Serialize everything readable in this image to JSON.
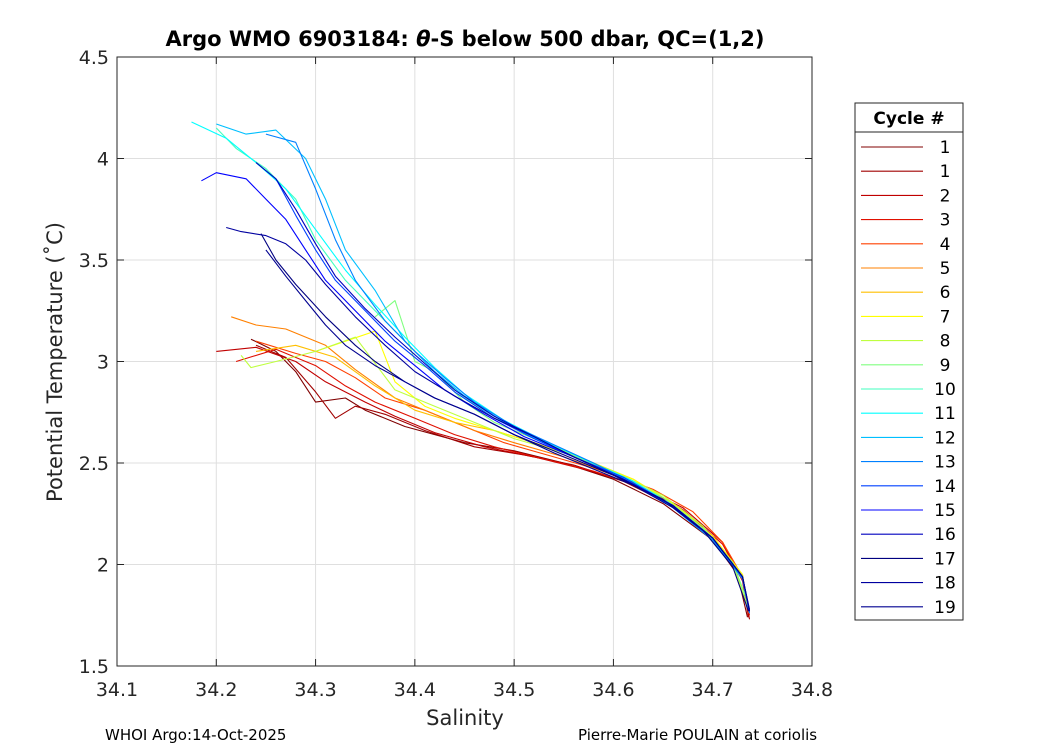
{
  "chart_data": {
    "type": "line",
    "title_prefix": "Argo WMO 6903184: ",
    "title_theta": "θ",
    "title_suffix": "-S below 500 dbar,  QC=(1,2)",
    "xlabel": "Salinity",
    "ylabel": "Potential Temperature (˚C)",
    "xlim": [
      34.1,
      34.8
    ],
    "ylim": [
      1.5,
      4.5
    ],
    "xticks": [
      "34.1",
      "34.2",
      "34.3",
      "34.4",
      "34.5",
      "34.6",
      "34.7",
      "34.8"
    ],
    "yticks": [
      "1.5",
      "2",
      "2.5",
      "3",
      "3.5",
      "4",
      "4.5"
    ],
    "grid": true,
    "legend": {
      "title": "Cycle #",
      "position": "right",
      "entries": [
        "1",
        "1",
        "2",
        "3",
        "4",
        "5",
        "6",
        "7",
        "8",
        "9",
        "10",
        "11",
        "12",
        "13",
        "14",
        "15",
        "16",
        "17",
        "18",
        "19"
      ]
    },
    "series": [
      {
        "name": "1",
        "color": "#800000",
        "x": [
          34.235,
          34.26,
          34.28,
          34.3,
          34.33,
          34.35,
          34.39,
          34.45,
          34.5,
          34.55,
          34.6,
          34.65,
          34.7,
          34.725,
          34.735
        ],
        "y": [
          3.11,
          3.05,
          2.95,
          2.8,
          2.82,
          2.76,
          2.68,
          2.6,
          2.56,
          2.5,
          2.42,
          2.3,
          2.12,
          1.95,
          1.74
        ]
      },
      {
        "name": "1",
        "color": "#a00000",
        "x": [
          34.24,
          34.27,
          34.3,
          34.32,
          34.34,
          34.37,
          34.41,
          34.46,
          34.51,
          34.56,
          34.61,
          34.66,
          34.7,
          34.73,
          34.737
        ],
        "y": [
          3.08,
          3.02,
          2.85,
          2.72,
          2.78,
          2.74,
          2.66,
          2.58,
          2.54,
          2.49,
          2.41,
          2.29,
          2.13,
          1.93,
          1.73
        ]
      },
      {
        "name": "2",
        "color": "#c00000",
        "x": [
          34.2,
          34.24,
          34.28,
          34.31,
          34.35,
          34.38,
          34.42,
          34.47,
          34.52,
          34.57,
          34.62,
          34.67,
          34.71,
          34.73,
          34.736
        ],
        "y": [
          3.05,
          3.07,
          3.0,
          2.9,
          2.8,
          2.73,
          2.65,
          2.58,
          2.53,
          2.47,
          2.4,
          2.28,
          2.11,
          1.92,
          1.74
        ]
      },
      {
        "name": "3",
        "color": "#e01000",
        "x": [
          34.22,
          34.26,
          34.3,
          34.33,
          34.36,
          34.4,
          34.44,
          34.48,
          34.53,
          34.58,
          34.63,
          34.67,
          34.71,
          34.73,
          34.737
        ],
        "y": [
          3.0,
          3.06,
          2.98,
          2.88,
          2.8,
          2.72,
          2.64,
          2.58,
          2.52,
          2.46,
          2.38,
          2.27,
          2.1,
          1.92,
          1.75
        ]
      },
      {
        "name": "4",
        "color": "#ff4000",
        "x": [
          34.24,
          34.28,
          34.31,
          34.34,
          34.37,
          34.41,
          34.45,
          34.49,
          34.54,
          34.59,
          34.64,
          34.68,
          34.71,
          34.73,
          34.736
        ],
        "y": [
          3.1,
          3.04,
          3.0,
          2.92,
          2.82,
          2.76,
          2.68,
          2.6,
          2.53,
          2.46,
          2.37,
          2.26,
          2.11,
          1.94,
          1.76
        ]
      },
      {
        "name": "5",
        "color": "#ff8000",
        "x": [
          34.215,
          34.24,
          34.27,
          34.31,
          34.34,
          34.38,
          34.42,
          34.46,
          34.5,
          34.55,
          34.6,
          34.65,
          34.69,
          34.72,
          34.735
        ],
        "y": [
          3.22,
          3.18,
          3.16,
          3.08,
          2.96,
          2.82,
          2.74,
          2.66,
          2.6,
          2.53,
          2.44,
          2.33,
          2.18,
          2.0,
          1.79
        ]
      },
      {
        "name": "6",
        "color": "#ffbf00",
        "x": [
          34.24,
          34.28,
          34.32,
          34.36,
          34.4,
          34.44,
          34.48,
          34.52,
          34.57,
          34.62,
          34.66,
          34.7,
          34.73,
          34.736
        ],
        "y": [
          3.05,
          3.08,
          3.02,
          2.88,
          2.76,
          2.7,
          2.66,
          2.6,
          2.52,
          2.42,
          2.3,
          2.14,
          1.95,
          1.77
        ]
      },
      {
        "name": "7",
        "color": "#ffff00",
        "x": [
          34.3,
          34.33,
          34.36,
          34.38,
          34.41,
          34.44,
          34.48,
          34.52,
          34.57,
          34.62,
          34.66,
          34.7,
          34.73,
          34.736
        ],
        "y": [
          3.05,
          3.1,
          3.15,
          2.9,
          2.78,
          2.72,
          2.66,
          2.6,
          2.52,
          2.42,
          2.3,
          2.14,
          1.95,
          1.78
        ]
      },
      {
        "name": "8",
        "color": "#bfff40",
        "x": [
          34.225,
          34.235,
          34.26,
          34.3,
          34.34,
          34.38,
          34.42,
          34.46,
          34.5,
          34.55,
          34.6,
          34.65,
          34.69,
          34.72,
          34.735
        ],
        "y": [
          3.03,
          2.97,
          3.0,
          3.05,
          3.12,
          2.86,
          2.78,
          2.7,
          2.62,
          2.55,
          2.46,
          2.34,
          2.19,
          2.0,
          1.8
        ]
      },
      {
        "name": "9",
        "color": "#80ff80",
        "x": [
          34.36,
          34.38,
          34.4,
          34.42,
          34.45,
          34.48,
          34.52,
          34.56,
          34.6,
          34.65,
          34.69,
          34.72,
          34.735
        ],
        "y": [
          3.22,
          3.3,
          3.0,
          2.95,
          2.8,
          2.7,
          2.62,
          2.54,
          2.45,
          2.33,
          2.18,
          2.01,
          1.82
        ]
      },
      {
        "name": "10",
        "color": "#40ffbf",
        "x": [
          34.2,
          34.22,
          34.25,
          34.28,
          34.3,
          34.33,
          34.36,
          34.39,
          34.42,
          34.45,
          34.49,
          34.53,
          34.57,
          34.62,
          34.66,
          34.7,
          34.73,
          34.737
        ],
        "y": [
          4.15,
          4.05,
          3.95,
          3.8,
          3.6,
          3.4,
          3.25,
          3.1,
          2.95,
          2.82,
          2.7,
          2.61,
          2.52,
          2.41,
          2.29,
          2.13,
          1.94,
          1.77
        ]
      },
      {
        "name": "11",
        "color": "#00ffff",
        "x": [
          34.175,
          34.21,
          34.24,
          34.27,
          34.3,
          34.33,
          34.36,
          34.39,
          34.42,
          34.45,
          34.49,
          34.53,
          34.57,
          34.62,
          34.66,
          34.7,
          34.73,
          34.737
        ],
        "y": [
          4.18,
          4.1,
          3.98,
          3.85,
          3.65,
          3.45,
          3.28,
          3.12,
          2.97,
          2.84,
          2.71,
          2.61,
          2.52,
          2.41,
          2.29,
          2.13,
          1.94,
          1.77
        ]
      },
      {
        "name": "12",
        "color": "#00bfff",
        "x": [
          34.2,
          34.23,
          34.26,
          34.29,
          34.31,
          34.33,
          34.36,
          34.39,
          34.42,
          34.45,
          34.49,
          34.53,
          34.57,
          34.62,
          34.66,
          34.7,
          34.73,
          34.737
        ],
        "y": [
          4.17,
          4.12,
          4.14,
          4.0,
          3.8,
          3.55,
          3.35,
          3.1,
          2.95,
          2.83,
          2.7,
          2.6,
          2.51,
          2.4,
          2.28,
          2.12,
          1.93,
          1.76
        ]
      },
      {
        "name": "13",
        "color": "#0080ff",
        "x": [
          34.25,
          34.28,
          34.3,
          34.32,
          34.34,
          34.37,
          34.4,
          34.43,
          34.46,
          34.5,
          34.54,
          34.58,
          34.62,
          34.66,
          34.7,
          34.73,
          34.737
        ],
        "y": [
          4.12,
          4.08,
          3.85,
          3.6,
          3.4,
          3.2,
          3.05,
          2.92,
          2.8,
          2.68,
          2.59,
          2.5,
          2.4,
          2.28,
          2.12,
          1.93,
          1.76
        ]
      },
      {
        "name": "14",
        "color": "#0040ff",
        "x": [
          34.26,
          34.28,
          34.3,
          34.32,
          34.35,
          34.38,
          34.41,
          34.44,
          34.48,
          34.52,
          34.56,
          34.61,
          34.66,
          34.7,
          34.73,
          34.737
        ],
        "y": [
          3.9,
          3.72,
          3.55,
          3.4,
          3.25,
          3.1,
          2.98,
          2.85,
          2.72,
          2.62,
          2.53,
          2.43,
          2.29,
          2.13,
          1.94,
          1.77
        ]
      },
      {
        "name": "15",
        "color": "#0000ff",
        "x": [
          34.185,
          34.2,
          34.23,
          34.25,
          34.27,
          34.29,
          34.31,
          34.34,
          34.37,
          34.4,
          34.43,
          34.47,
          34.51,
          34.56,
          34.61,
          34.66,
          34.7,
          34.73,
          34.737
        ],
        "y": [
          3.89,
          3.93,
          3.9,
          3.8,
          3.7,
          3.55,
          3.4,
          3.25,
          3.1,
          2.98,
          2.86,
          2.74,
          2.63,
          2.53,
          2.42,
          2.29,
          2.13,
          1.94,
          1.77
        ]
      },
      {
        "name": "16",
        "color": "#0000bf",
        "x": [
          34.24,
          34.26,
          34.28,
          34.3,
          34.32,
          34.35,
          34.38,
          34.41,
          34.44,
          34.48,
          34.52,
          34.56,
          34.61,
          34.66,
          34.7,
          34.73,
          34.737
        ],
        "y": [
          3.98,
          3.9,
          3.75,
          3.58,
          3.42,
          3.26,
          3.12,
          2.99,
          2.86,
          2.73,
          2.63,
          2.53,
          2.42,
          2.29,
          2.13,
          1.94,
          1.77
        ]
      },
      {
        "name": "17",
        "color": "#000080",
        "x": [
          34.245,
          34.26,
          34.28,
          34.31,
          34.34,
          34.36,
          34.39,
          34.42,
          34.46,
          34.5,
          34.55,
          34.6,
          34.65,
          34.69,
          34.72,
          34.736
        ],
        "y": [
          3.63,
          3.5,
          3.38,
          3.22,
          3.08,
          3.0,
          2.9,
          2.82,
          2.74,
          2.64,
          2.54,
          2.44,
          2.32,
          2.17,
          1.99,
          1.77
        ]
      },
      {
        "name": "18",
        "color": "#0000a0",
        "x": [
          34.21,
          34.225,
          34.25,
          34.27,
          34.29,
          34.31,
          34.34,
          34.37,
          34.4,
          34.44,
          34.48,
          34.52,
          34.56,
          34.61,
          34.66,
          34.7,
          34.73,
          34.737
        ],
        "y": [
          3.66,
          3.64,
          3.62,
          3.58,
          3.5,
          3.38,
          3.22,
          3.08,
          2.95,
          2.83,
          2.72,
          2.63,
          2.53,
          2.42,
          2.29,
          2.13,
          1.94,
          1.77
        ]
      },
      {
        "name": "19",
        "color": "#000090",
        "x": [
          34.25,
          34.27,
          34.29,
          34.31,
          34.33,
          34.36,
          34.39,
          34.42,
          34.46,
          34.5,
          34.54,
          34.58,
          34.62,
          34.66,
          34.7,
          34.73,
          34.737
        ],
        "y": [
          3.55,
          3.42,
          3.3,
          3.18,
          3.08,
          2.98,
          2.9,
          2.82,
          2.74,
          2.64,
          2.55,
          2.47,
          2.39,
          2.28,
          2.13,
          1.94,
          1.78
        ]
      }
    ]
  },
  "footer": {
    "left": "WHOI Argo:14-Oct-2025",
    "right": "Pierre-Marie POULAIN at coriolis"
  }
}
